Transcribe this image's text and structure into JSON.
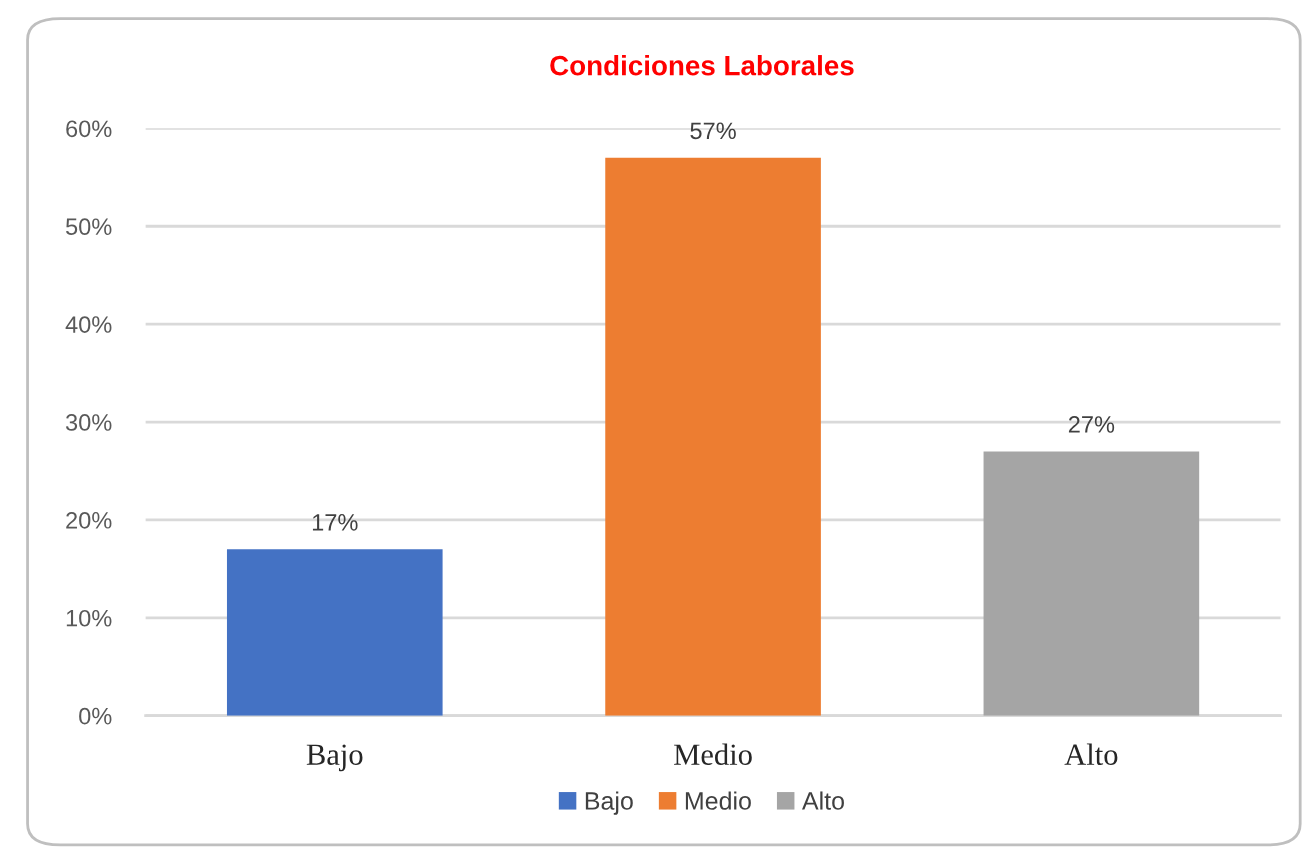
{
  "chart_data": {
    "type": "bar",
    "title": "Condiciones Laborales",
    "categories": [
      "Bajo",
      "Medio",
      "Alto"
    ],
    "series": [
      {
        "name": "Bajo",
        "color": "#4472c4",
        "values": [
          17,
          null,
          null
        ],
        "value_labels": [
          "17%",
          null,
          null
        ]
      },
      {
        "name": "Medio",
        "color": "#ed7d31",
        "values": [
          null,
          57,
          null
        ],
        "value_labels": [
          null,
          "57%",
          null
        ]
      },
      {
        "name": "Alto",
        "color": "#a5a5a5",
        "values": [
          null,
          null,
          27
        ],
        "value_labels": [
          null,
          null,
          "27%"
        ]
      }
    ],
    "ylim": [
      0,
      60
    ],
    "yticks": [
      {
        "value": 0,
        "label": "0%"
      },
      {
        "value": 10,
        "label": "10%"
      },
      {
        "value": 20,
        "label": "20%"
      },
      {
        "value": 30,
        "label": "30%"
      },
      {
        "value": 40,
        "label": "40%"
      },
      {
        "value": 50,
        "label": "50%"
      },
      {
        "value": 60,
        "label": "60%"
      }
    ],
    "grid": "y",
    "legend": "bottom"
  }
}
